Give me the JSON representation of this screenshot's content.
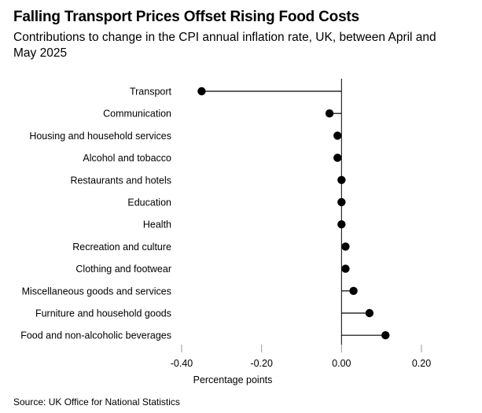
{
  "title": "Falling Transport Prices Offset Rising Food Costs",
  "subtitle": "Contributions to change in the CPI annual inflation rate, UK, between April and May 2025",
  "source": "Source: UK Office for National Statistics",
  "chart_data": {
    "type": "dot",
    "title": "Falling Transport Prices Offset Rising Food Costs",
    "subtitle": "Contributions to change in the CPI annual inflation rate, UK, between April and May 2025",
    "xlabel": "Percentage points",
    "ylabel": "",
    "xlim": [
      -0.4,
      0.2
    ],
    "x_ticks": [
      -0.4,
      -0.2,
      0.0,
      0.2
    ],
    "x_tick_labels": [
      "-0.40",
      "-0.20",
      "0.00",
      "0.20"
    ],
    "grid": false,
    "categories": [
      "Transport",
      "Communication",
      "Housing and household services",
      "Alcohol and tobacco",
      "Restaurants and hotels",
      "Education",
      "Health",
      "Recreation and culture",
      "Clothing and footwear",
      "Miscellaneous goods and services",
      "Furniture and household goods",
      "Food and non-alcoholic beverages"
    ],
    "values": [
      -0.35,
      -0.03,
      -0.01,
      -0.01,
      0.0,
      0.0,
      0.0,
      0.01,
      0.01,
      0.03,
      0.07,
      0.11
    ],
    "colors": {
      "marker": "#000000",
      "line": "#000000",
      "axis": "#999999"
    }
  }
}
